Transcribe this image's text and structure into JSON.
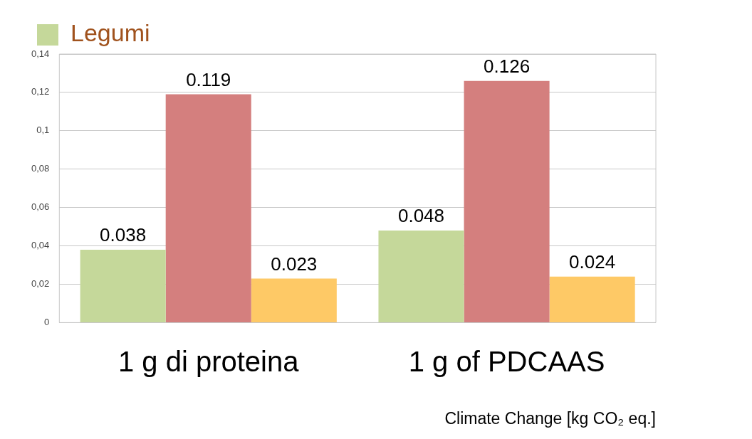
{
  "chart_data": {
    "type": "bar",
    "xlabel": "Climate Change [kg CO₂ eq.]",
    "categories": [
      "1 g di proteina",
      "1 g of PDCAAS"
    ],
    "series": [
      {
        "name": "Legumi",
        "color": "#c5d89a",
        "values": [
          0.038,
          0.048
        ]
      },
      {
        "color": "#d47f7e",
        "values": [
          0.119,
          0.126
        ]
      },
      {
        "color": "#fec966",
        "values": [
          0.023,
          0.024
        ]
      }
    ],
    "ylim": [
      0,
      0.14
    ],
    "yticks": [
      {
        "value": 0,
        "label": "0"
      },
      {
        "value": 0.02,
        "label": "0,02"
      },
      {
        "value": 0.04,
        "label": "0,04"
      },
      {
        "value": 0.06,
        "label": "0,06"
      },
      {
        "value": 0.08,
        "label": "0,08"
      },
      {
        "value": 0.1,
        "label": "0,1"
      },
      {
        "value": 0.12,
        "label": "0,12"
      },
      {
        "value": 0.14,
        "label": "0,14"
      }
    ],
    "grid": "y",
    "legend": "top left",
    "data_labels": true
  }
}
